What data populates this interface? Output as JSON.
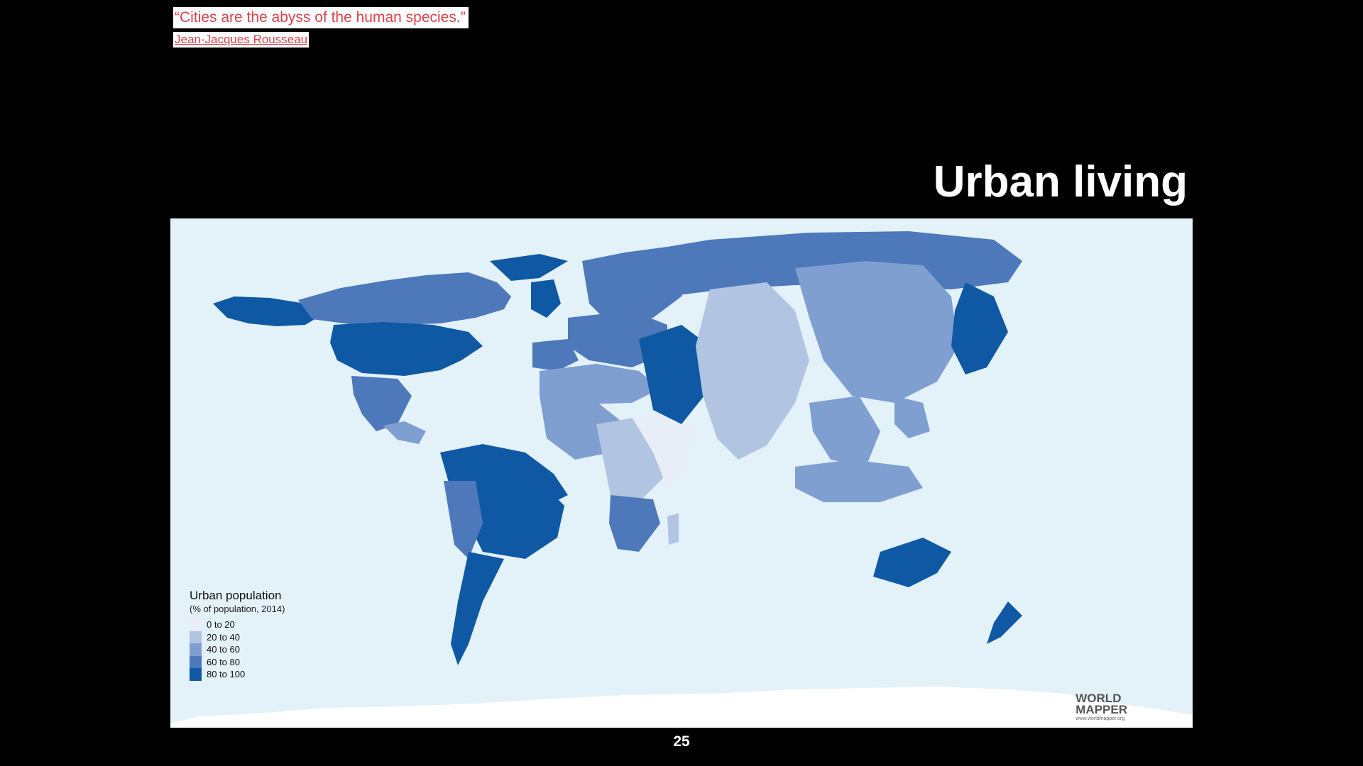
{
  "quote": {
    "text": "“Cities are the abyss of the human species.”",
    "author": "Jean-Jacques Rousseau"
  },
  "slide": {
    "title": "Urban living",
    "page_number": "25"
  },
  "map": {
    "legend": {
      "title": "Urban population",
      "subtitle": "(% of population, 2014)",
      "items": [
        {
          "label": "0 to 20",
          "color": "#e8eef7"
        },
        {
          "label": "20 to 40",
          "color": "#b1c4e2"
        },
        {
          "label": "40 to 60",
          "color": "#7f9fd0"
        },
        {
          "label": "60 to 80",
          "color": "#4d79bb"
        },
        {
          "label": "80 to 100",
          "color": "#0f59a4"
        }
      ]
    },
    "brand": {
      "line1": "WORLD",
      "line2": "MAPPER",
      "url": "www.worldmapper.org"
    },
    "colors": {
      "ocean": "#e3f1f8",
      "antarctica": "#ffffff"
    }
  }
}
